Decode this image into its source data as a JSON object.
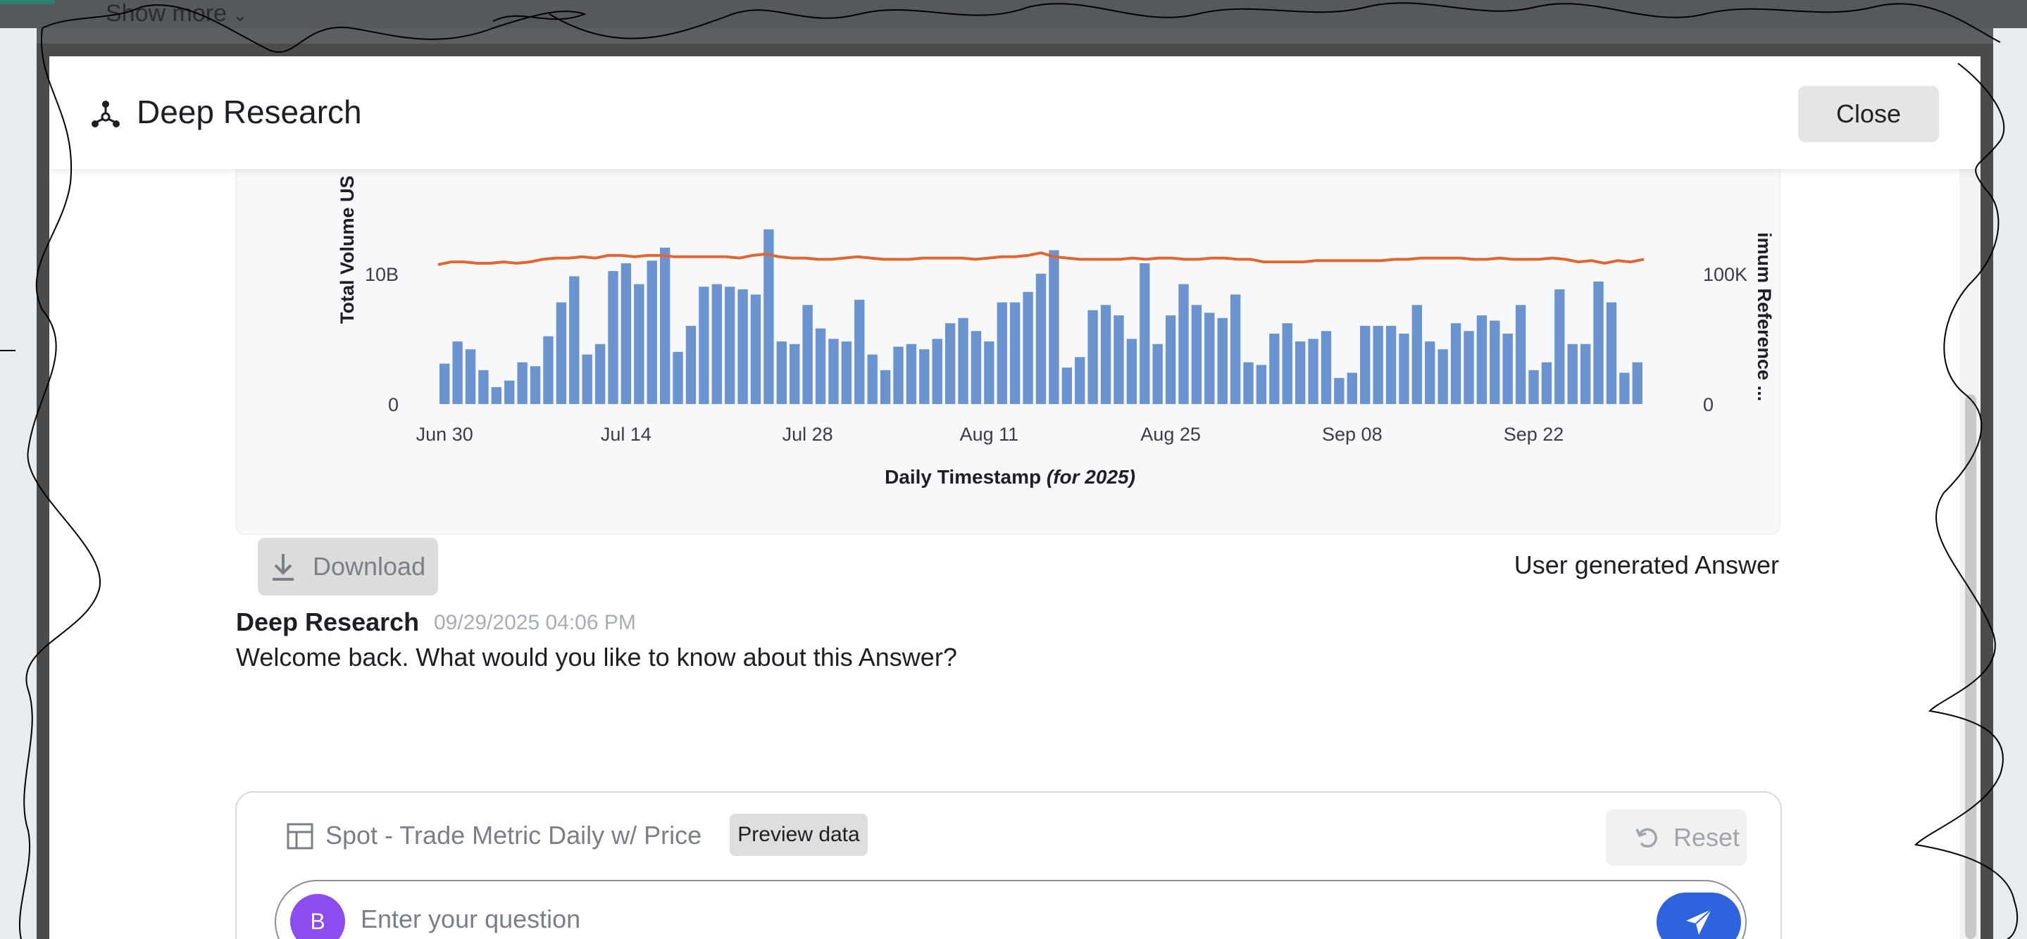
{
  "background": {
    "show_more_label": "Show more"
  },
  "header": {
    "title": "Deep Research",
    "close_label": "Close"
  },
  "chart_card": {
    "download_label": "Download",
    "footer_note": "User generated Answer"
  },
  "chart_data": {
    "type": "bar",
    "x_label": "Daily Timestamp",
    "x_label_suffix": "(for 2025)",
    "y_left_label": "Total Volume US",
    "y_right_label": "imum Reference ...",
    "y_left_ticks": [
      "0",
      "10B"
    ],
    "y_right_ticks": [
      "0",
      "100K"
    ],
    "x_tick_labels": [
      "Jun 30",
      "Jul 14",
      "Jul 28",
      "Aug 11",
      "Aug 25",
      "Sep 08",
      "Sep 22"
    ],
    "ylim_left": [
      0,
      13500000000
    ],
    "ylim_right": [
      0,
      135000
    ],
    "series": [
      {
        "name": "Total Volume US",
        "type": "bar",
        "color": "#6b93cf",
        "values": [
          3.1,
          4.8,
          4.2,
          2.6,
          1.3,
          1.8,
          3.2,
          2.9,
          5.2,
          7.8,
          9.8,
          3.8,
          4.6,
          10.2,
          10.8,
          9.2,
          11.0,
          12.0,
          4.0,
          6.0,
          9.0,
          9.2,
          9.0,
          8.8,
          8.4,
          13.4,
          4.8,
          4.6,
          7.6,
          5.8,
          5.0,
          4.8,
          8.0,
          3.8,
          2.6,
          4.4,
          4.6,
          4.2,
          5.0,
          6.2,
          6.6,
          5.6,
          4.8,
          7.8,
          7.8,
          8.6,
          10.0,
          11.8,
          2.8,
          3.6,
          7.2,
          7.6,
          6.8,
          5.0,
          10.8,
          4.6,
          6.8,
          9.2,
          7.6,
          7.0,
          6.6,
          8.4,
          3.2,
          3.0,
          5.4,
          6.2,
          4.8,
          5.0,
          5.6,
          2.0,
          2.4,
          6.0,
          6.0,
          6.0,
          5.4,
          7.6,
          4.8,
          4.2,
          6.2,
          5.6,
          6.8,
          6.4,
          5.4,
          7.6,
          2.6,
          3.2,
          8.8,
          4.6,
          4.6,
          9.4,
          7.8,
          2.4,
          3.2
        ]
      },
      {
        "name": "Maximum Reference",
        "type": "line",
        "color": "#e0652e",
        "values": [
          107,
          109,
          109,
          108,
          108,
          109,
          108,
          109,
          111,
          112,
          112,
          113,
          112,
          114,
          114,
          113,
          114,
          114,
          113,
          113,
          113,
          113,
          113,
          112,
          114,
          115,
          113,
          112,
          112,
          111,
          111,
          112,
          113,
          112,
          111,
          111,
          111,
          112,
          112,
          112,
          112,
          111,
          112,
          113,
          113,
          114,
          116,
          113,
          112,
          111,
          111,
          111,
          111,
          112,
          111,
          112,
          112,
          111,
          111,
          112,
          112,
          111,
          111,
          109,
          109,
          109,
          109,
          110,
          110,
          110,
          110,
          110,
          110,
          111,
          111,
          112,
          112,
          112,
          112,
          111,
          111,
          112,
          111,
          111,
          111,
          112,
          111,
          109,
          110,
          108,
          110,
          109,
          111
        ]
      }
    ]
  },
  "message": {
    "author": "Deep Research",
    "timestamp": "09/29/2025 04:06 PM",
    "text": "Welcome back. What would you like to know about this Answer?"
  },
  "composer": {
    "dataset_name": "Spot - Trade Metric Daily w/ Price",
    "preview_label": "Preview data",
    "reset_label": "Reset",
    "avatar_initial": "B",
    "question_placeholder": "Enter your question"
  },
  "colors": {
    "primary": "#2f63de",
    "avatar": "#8b4cf0",
    "bar": "#6b93cf",
    "line": "#e0652e"
  },
  "icons": {
    "header_logo": "network-nodes-icon",
    "download": "download-arrow-icon",
    "dataset": "table-grid-icon",
    "reset": "rotate-ccw-icon",
    "send": "paper-plane-icon"
  }
}
